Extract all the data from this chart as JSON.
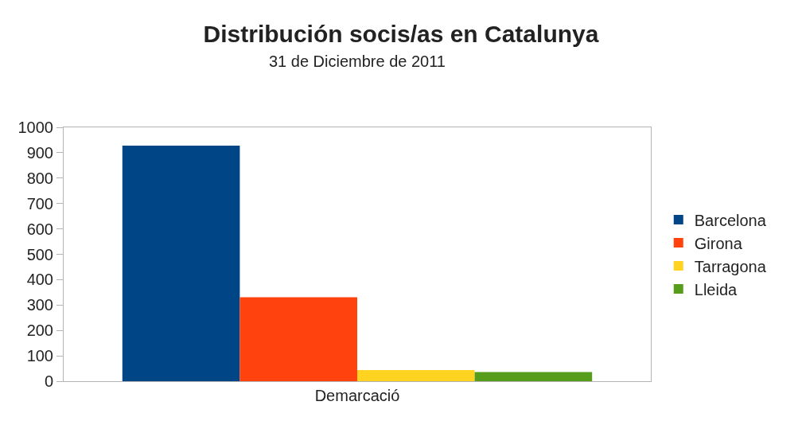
{
  "chart_data": {
    "type": "bar",
    "title": "Distribución socis/as en Catalunya",
    "subtitle": "31 de Diciembre de 2011",
    "categories": [
      "Demarcació"
    ],
    "series": [
      {
        "name": "Barcelona",
        "color": "#004586",
        "values": [
          928
        ]
      },
      {
        "name": "Girona",
        "color": "#ff420e",
        "values": [
          331
        ]
      },
      {
        "name": "Tarragona",
        "color": "#ffd320",
        "values": [
          44
        ]
      },
      {
        "name": "Lleida",
        "color": "#579d1c",
        "values": [
          36
        ]
      }
    ],
    "ylim": [
      0,
      1000
    ],
    "yticks": [
      0,
      100,
      200,
      300,
      400,
      500,
      600,
      700,
      800,
      900,
      1000
    ],
    "grid": false,
    "legend": "right"
  }
}
